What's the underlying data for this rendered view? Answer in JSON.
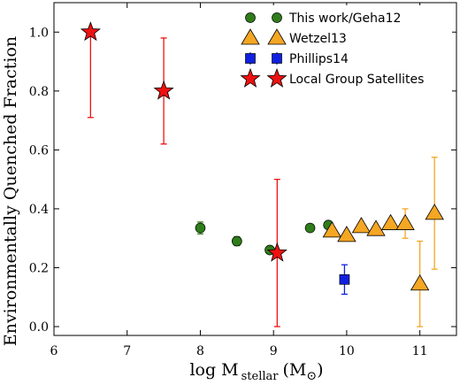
{
  "chart_data": {
    "type": "scatter",
    "xlabel_main": "log M",
    "xlabel_sub": "stellar",
    "xlabel_unit_open": "(M",
    "xlabel_unit_sym": "⊙",
    "xlabel_unit_close": ")",
    "ylabel": "Environmentally Quenched Fraction",
    "xlim": [
      6.0,
      11.5
    ],
    "ylim": [
      -0.03,
      1.1
    ],
    "xticks": [
      6,
      7,
      8,
      9,
      10,
      11
    ],
    "yticks": [
      0.0,
      0.2,
      0.4,
      0.6,
      0.8,
      1.0
    ],
    "xtick_labels": [
      "6",
      "7",
      "8",
      "9",
      "10",
      "11"
    ],
    "ytick_labels": [
      "0.0",
      "0.2",
      "0.4",
      "0.6",
      "0.8",
      "1.0"
    ],
    "grid": false,
    "legend_position": "top-right",
    "series": [
      {
        "name": "This work/Geha12",
        "marker": "circle",
        "color": "#2e7d1a",
        "points": [
          {
            "x": 8.0,
            "y": 0.335,
            "err": 0.02
          },
          {
            "x": 8.5,
            "y": 0.29,
            "err": 0.015
          },
          {
            "x": 8.95,
            "y": 0.26,
            "err": 0.01
          },
          {
            "x": 9.5,
            "y": 0.335,
            "err": 0.0
          },
          {
            "x": 9.75,
            "y": 0.345,
            "err": 0.0
          }
        ]
      },
      {
        "name": "Wetzel13",
        "marker": "triangle",
        "color": "#f5a623",
        "points": [
          {
            "x": 9.8,
            "y": 0.325,
            "err": 0.0
          },
          {
            "x": 10.0,
            "y": 0.31,
            "err": 0.0
          },
          {
            "x": 10.2,
            "y": 0.34,
            "err": 0.0
          },
          {
            "x": 10.4,
            "y": 0.33,
            "err": 0.0
          },
          {
            "x": 10.6,
            "y": 0.35,
            "err": 0.0
          },
          {
            "x": 10.8,
            "y": 0.35,
            "err": 0.05
          },
          {
            "x": 11.0,
            "y": 0.145,
            "err": 0.145
          },
          {
            "x": 11.2,
            "y": 0.385,
            "err": 0.19
          }
        ]
      },
      {
        "name": "Phillips14",
        "marker": "square",
        "color": "#1020e0",
        "points": [
          {
            "x": 9.97,
            "y": 0.16,
            "err": 0.05
          }
        ]
      },
      {
        "name": "Local Group Satellites",
        "marker": "star",
        "color": "#ee1111",
        "points": [
          {
            "x": 6.5,
            "y": 1.0,
            "err_lo": 0.29,
            "err_hi": 0.0
          },
          {
            "x": 7.5,
            "y": 0.8,
            "err_lo": 0.18,
            "err_hi": 0.18
          },
          {
            "x": 9.05,
            "y": 0.25,
            "err_lo": 0.25,
            "err_hi": 0.25
          }
        ]
      }
    ]
  }
}
